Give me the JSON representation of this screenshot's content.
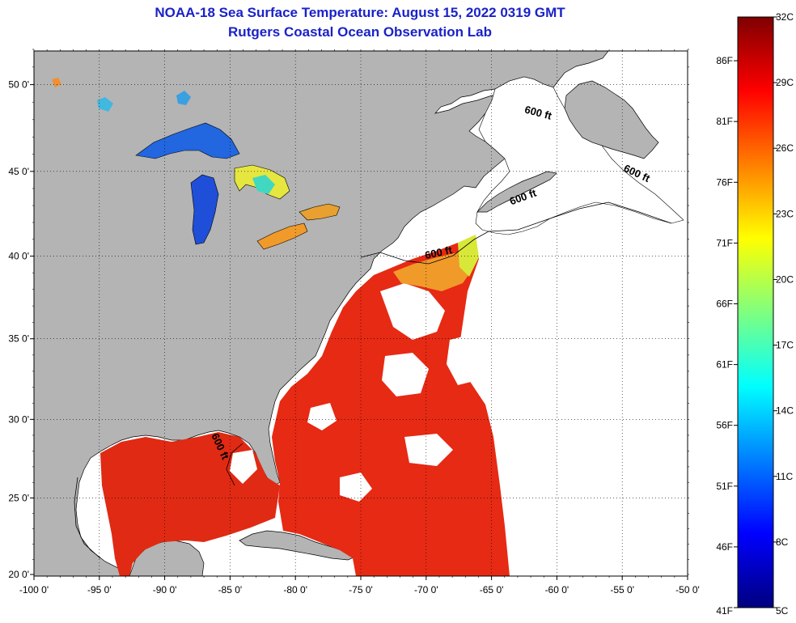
{
  "title": "NOAA-18 Sea Surface Temperature:  August 15, 2022 0319 GMT",
  "subtitle": "Rutgers Coastal Ocean Observation Lab",
  "map": {
    "lon_range": [
      -100,
      -50
    ],
    "lat_range": [
      20,
      52
    ],
    "lon_ticks": [
      {
        "value": -100,
        "label": "-100 0'"
      },
      {
        "value": -95,
        "label": "-95 0'"
      },
      {
        "value": -90,
        "label": "-90 0'"
      },
      {
        "value": -85,
        "label": "-85 0'"
      },
      {
        "value": -80,
        "label": "-80 0'"
      },
      {
        "value": -75,
        "label": "-75 0'"
      },
      {
        "value": -70,
        "label": "-70 0'"
      },
      {
        "value": -65,
        "label": "-65 0'"
      },
      {
        "value": -60,
        "label": "-60 0'"
      },
      {
        "value": -55,
        "label": "-55 0'"
      },
      {
        "value": -50,
        "label": "-50 0'"
      }
    ],
    "lat_ticks": [
      {
        "value": 20,
        "label": "20 0'"
      },
      {
        "value": 25,
        "label": "25 0'"
      },
      {
        "value": 30,
        "label": "30 0'"
      },
      {
        "value": 35,
        "label": "35 0'"
      },
      {
        "value": 40,
        "label": "40 0'"
      },
      {
        "value": 45,
        "label": "45 0'"
      },
      {
        "value": 50,
        "label": "50 0'"
      }
    ],
    "contour_label": "600 ft",
    "contour_labels": [
      {
        "text": "600 ft",
        "lon": -61.5,
        "lat": 48.2,
        "angle": 15
      },
      {
        "text": "600 ft",
        "lon": -54.0,
        "lat": 44.7,
        "angle": 25
      },
      {
        "text": "600 ft",
        "lon": -62.5,
        "lat": 43.3,
        "angle": -20
      },
      {
        "text": "600 ft",
        "lon": -69.0,
        "lat": 40.0,
        "angle": -12
      },
      {
        "text": "600 ft",
        "lon": -86.0,
        "lat": 28.2,
        "angle": 65
      }
    ],
    "colors": {
      "land": "#b4b4b4",
      "cloud": "#ffffff",
      "title": "#1a22c8",
      "warm": "#e62a14",
      "hot": "#d21814"
    }
  },
  "colorbar": {
    "min_c": 5,
    "max_c": 32,
    "celsius_labels": [
      "32C",
      "29C",
      "26C",
      "23C",
      "20C",
      "17C",
      "14C",
      "11C",
      "8C",
      "5C"
    ],
    "fahrenheit_labels": [
      "86F",
      "81F",
      "76F",
      "71F",
      "66F",
      "61F",
      "56F",
      "51F",
      "46F",
      "41F"
    ],
    "fahrenheit_values": [
      86,
      81,
      76,
      71,
      66,
      61,
      56,
      51,
      46,
      41
    ],
    "stops": [
      "#00007f",
      "#0000ff",
      "#007fff",
      "#00ffff",
      "#7fff7f",
      "#ffff00",
      "#ff7f00",
      "#ff0000",
      "#7f0000"
    ]
  }
}
